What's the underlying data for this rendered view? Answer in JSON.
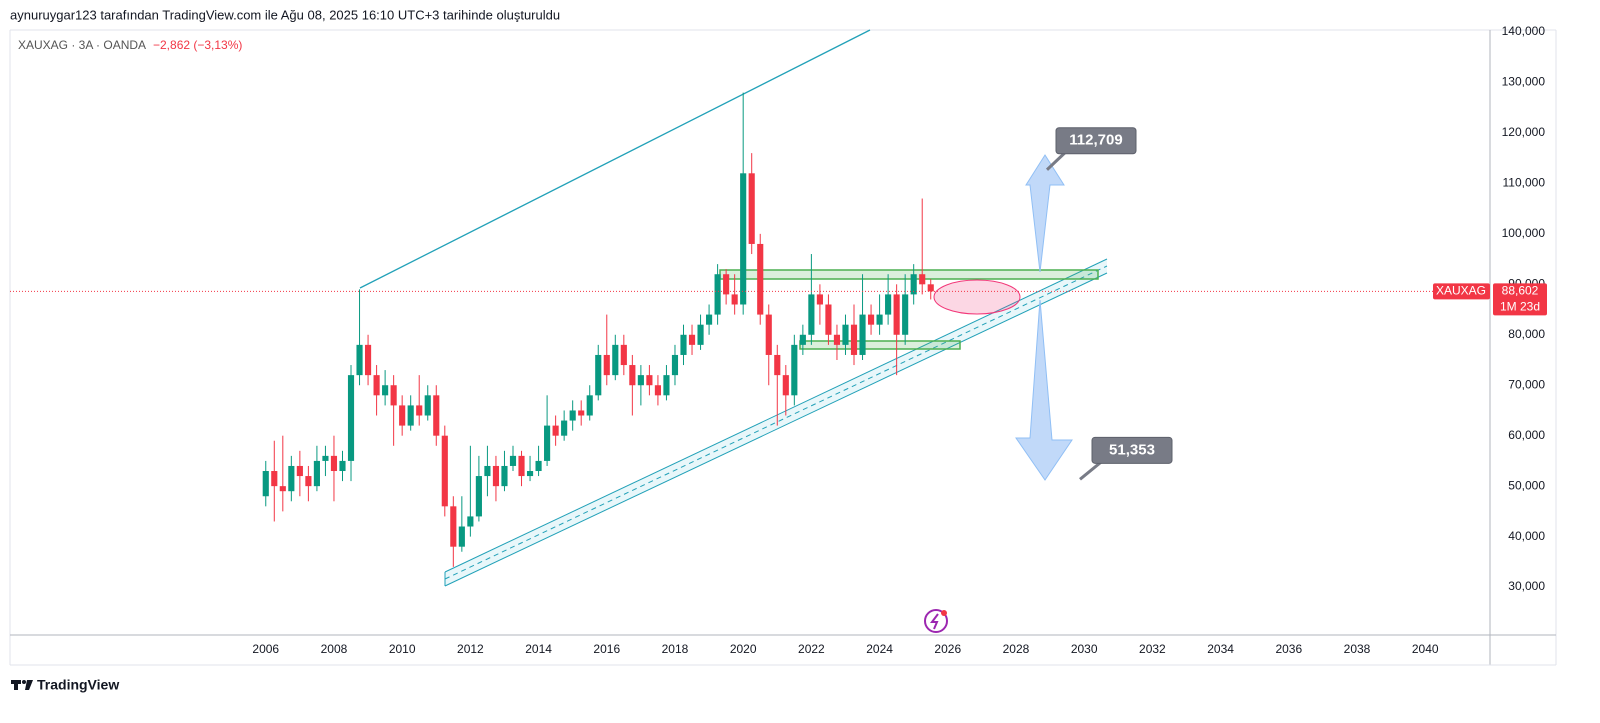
{
  "header": {
    "text": "aynuruygar123 tarafından TradingView.com ile Ağu 08, 2025 16:10 UTC+3 tarihinde oluşturuldu"
  },
  "footer": {
    "brand": "TradingView"
  },
  "chart_data": {
    "type": "candlestick",
    "title": "XAUXAG · 3A · OANDA",
    "change": "−2,862 (−3,13%)",
    "up_color": "#089981",
    "down_color": "#f23645",
    "x": [
      2006,
      2006.25,
      2006.5,
      2006.75,
      2007,
      2007.25,
      2007.5,
      2007.75,
      2008,
      2008.25,
      2008.5,
      2008.75,
      2009,
      2009.25,
      2009.5,
      2009.75,
      2010,
      2010.25,
      2010.5,
      2010.75,
      2011,
      2011.25,
      2011.5,
      2011.75,
      2012,
      2012.25,
      2012.5,
      2012.75,
      2013,
      2013.25,
      2013.5,
      2013.75,
      2014,
      2014.25,
      2014.5,
      2014.75,
      2015,
      2015.25,
      2015.5,
      2015.75,
      2016,
      2016.25,
      2016.5,
      2016.75,
      2017,
      2017.25,
      2017.5,
      2017.75,
      2018,
      2018.25,
      2018.5,
      2018.75,
      2019,
      2019.25,
      2019.5,
      2019.75,
      2020,
      2020.25,
      2020.5,
      2020.75,
      2021,
      2021.25,
      2021.5,
      2021.75,
      2022,
      2022.25,
      2022.5,
      2022.75,
      2023,
      2023.25,
      2023.5,
      2023.75,
      2024,
      2024.25,
      2024.5,
      2024.75,
      2025,
      2025.25,
      2025.5
    ],
    "open": [
      48000,
      53000,
      50000,
      49000,
      54000,
      52000,
      50000,
      55000,
      56000,
      53000,
      55000,
      72000,
      78000,
      72000,
      68000,
      70000,
      66000,
      62000,
      66000,
      64000,
      68000,
      60000,
      46000,
      38000,
      42000,
      44000,
      52000,
      54000,
      50000,
      54000,
      56000,
      52000,
      53000,
      55000,
      62000,
      60000,
      63000,
      65000,
      64000,
      68000,
      76000,
      72000,
      78000,
      74000,
      70000,
      72000,
      70000,
      68000,
      72000,
      76000,
      80000,
      78000,
      82000,
      84000,
      92000,
      88000,
      86000,
      112000,
      98000,
      84000,
      76000,
      72000,
      68000,
      78000,
      80000,
      88000,
      86000,
      80000,
      78000,
      82000,
      76000,
      84000,
      82000,
      84000,
      88000,
      80000,
      88000,
      92000,
      90000
    ],
    "high": [
      55000,
      59000,
      60000,
      56000,
      57000,
      54000,
      58000,
      58000,
      60000,
      57000,
      74000,
      89000,
      80000,
      74000,
      73000,
      72000,
      68000,
      68000,
      72000,
      70000,
      70000,
      62000,
      48000,
      48000,
      58000,
      56000,
      58000,
      56000,
      57000,
      58000,
      57000,
      56000,
      58000,
      68000,
      64000,
      65000,
      67000,
      67000,
      70000,
      78000,
      84000,
      80000,
      80000,
      76000,
      74000,
      74000,
      72000,
      74000,
      78000,
      82000,
      82000,
      84000,
      86000,
      94000,
      93000,
      92000,
      128000,
      116000,
      100000,
      86000,
      78000,
      74000,
      80000,
      82000,
      96000,
      90000,
      88000,
      82000,
      84000,
      86000,
      92000,
      86000,
      88000,
      92000,
      90000,
      92000,
      94000,
      107000,
      91000
    ],
    "low": [
      46000,
      43000,
      45000,
      47000,
      48000,
      47000,
      49000,
      52000,
      47000,
      51000,
      51000,
      70000,
      70000,
      64000,
      66000,
      58000,
      60000,
      61000,
      62000,
      63000,
      58000,
      44000,
      34000,
      37000,
      40000,
      43000,
      48000,
      47000,
      49000,
      53000,
      50000,
      51000,
      52000,
      54000,
      58000,
      59000,
      61000,
      62000,
      63000,
      67000,
      70000,
      71000,
      72000,
      64000,
      66000,
      68000,
      66000,
      67000,
      70000,
      74000,
      76000,
      77000,
      80000,
      82000,
      86000,
      84000,
      84000,
      96000,
      82000,
      70000,
      62000,
      64000,
      66000,
      76000,
      78000,
      82000,
      78000,
      75000,
      76000,
      74000,
      75000,
      80000,
      80000,
      82000,
      72000,
      78000,
      86000,
      88000,
      87000
    ],
    "close": [
      53000,
      50000,
      49000,
      54000,
      52000,
      50000,
      55000,
      56000,
      53000,
      55000,
      72000,
      78000,
      72000,
      68000,
      70000,
      66000,
      62000,
      66000,
      64000,
      68000,
      60000,
      46000,
      38000,
      42000,
      44000,
      52000,
      54000,
      50000,
      54000,
      56000,
      52000,
      53000,
      55000,
      62000,
      60000,
      63000,
      65000,
      64000,
      68000,
      76000,
      72000,
      78000,
      74000,
      70000,
      72000,
      70000,
      68000,
      72000,
      76000,
      80000,
      78000,
      82000,
      84000,
      92000,
      88000,
      86000,
      112000,
      98000,
      84000,
      76000,
      72000,
      68000,
      78000,
      80000,
      88000,
      86000,
      80000,
      78000,
      82000,
      76000,
      84000,
      82000,
      84000,
      88000,
      80000,
      88000,
      92000,
      90000,
      88602
    ],
    "xlim": [
      1998.5,
      2041.9
    ],
    "xticks": [
      2006,
      2008,
      2010,
      2012,
      2014,
      2016,
      2018,
      2020,
      2022,
      2024,
      2026,
      2028,
      2030,
      2032,
      2034,
      2036,
      2038,
      2040
    ],
    "ylim": [
      20500,
      140400
    ],
    "yticks": [
      {
        "value": 30000,
        "label": "30,000"
      },
      {
        "value": 40000,
        "label": "40,000"
      },
      {
        "value": 50000,
        "label": "50,000"
      },
      {
        "value": 60000,
        "label": "60,000"
      },
      {
        "value": 70000,
        "label": "70,000"
      },
      {
        "value": 80000,
        "label": "80,000"
      },
      {
        "value": 90000,
        "label": "90,000"
      },
      {
        "value": 100000,
        "label": "100,000"
      },
      {
        "value": 110000,
        "label": "110,000"
      },
      {
        "value": 120000,
        "label": "120,000"
      },
      {
        "value": 130000,
        "label": "130,000"
      },
      {
        "value": 140000,
        "label": "140,000"
      }
    ],
    "last_price": {
      "value": 88602,
      "label": "88,602"
    },
    "symbol": "XAUXAG",
    "countdown": "1M 23d",
    "annotations": [
      {
        "value": 112709,
        "label": "112,709"
      },
      {
        "value": 51353,
        "label": "51,353"
      }
    ]
  }
}
